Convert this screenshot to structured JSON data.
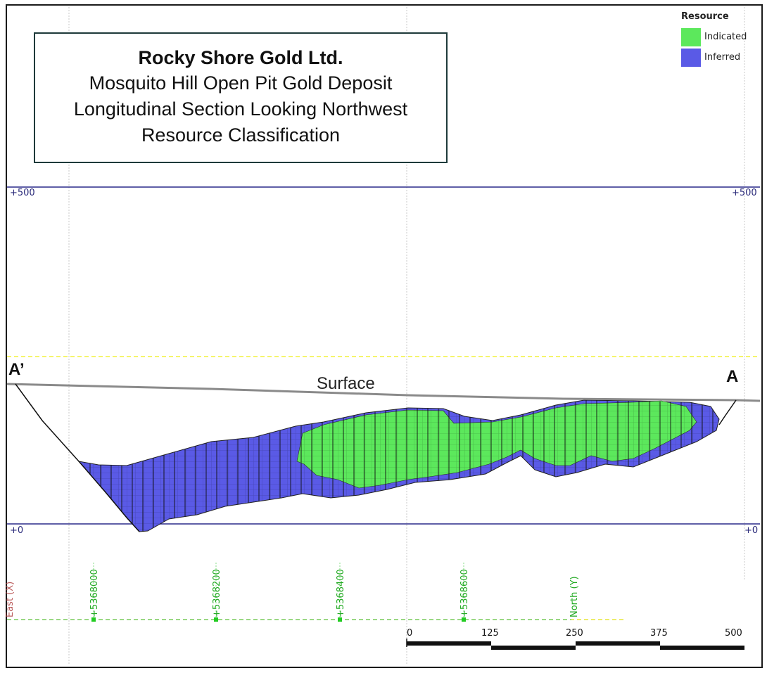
{
  "title": {
    "company": "Rocky Shore Gold Ltd.",
    "line2": "Mosquito Hill Open Pit Gold Deposit",
    "line3": "Longitudinal Section Looking Northwest",
    "line4": "Resource Classification"
  },
  "legend": {
    "heading": "Resource",
    "items": [
      {
        "label": "Indicated",
        "color": "#5ce85c"
      },
      {
        "label": "Inferred",
        "color": "#5a5ae6"
      }
    ]
  },
  "elevation_labels": {
    "top_left": "+500",
    "top_right": "+500",
    "bottom_left": "+0",
    "bottom_right": "+0"
  },
  "section_points": {
    "left": "A’",
    "right": "A"
  },
  "surface_label": "Surface",
  "north_ticks": [
    "+5368000",
    "+5368200",
    "+5368400",
    "+5368600",
    "North (Y)"
  ],
  "east_label_partial": "East (X)",
  "scale_bar": {
    "ticks": [
      "0",
      "125",
      "250",
      "375",
      "500"
    ]
  },
  "colors": {
    "indicated": "#5ce85c",
    "inferred": "#5a5ae6",
    "elevation_line": "#2a2a8a",
    "north_axis": "#22aa22",
    "guide_yellow": "#f2f23a"
  }
}
